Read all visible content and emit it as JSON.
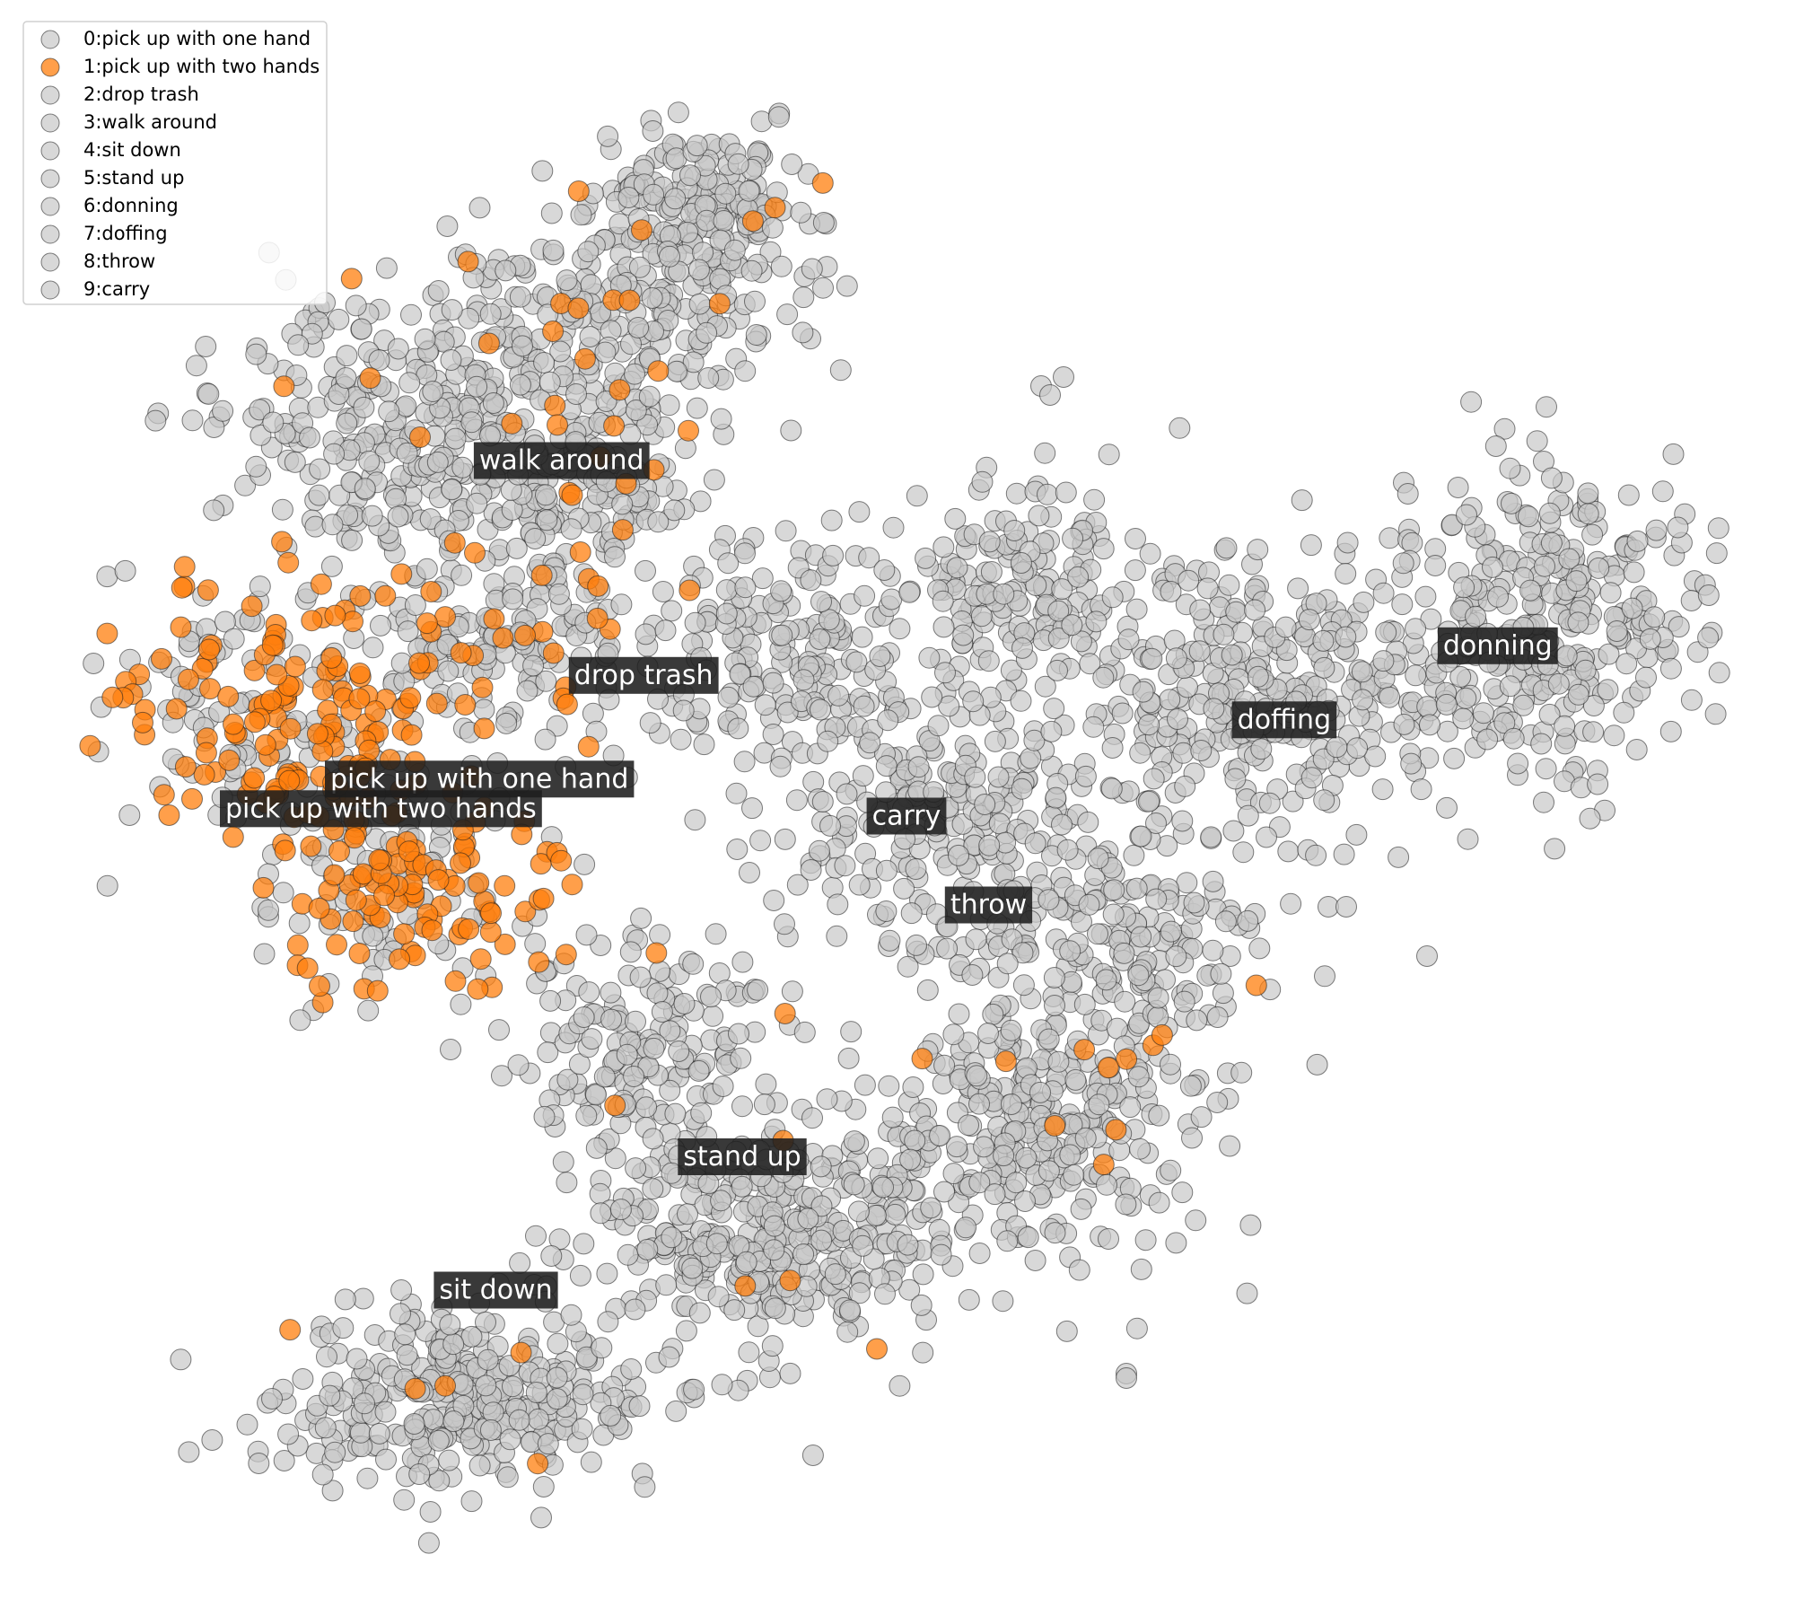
{
  "chart_data": {
    "type": "scatter",
    "title": "",
    "xlabel": "",
    "ylabel": "",
    "axes_visible": false,
    "grid": false,
    "legend_position": "top-left",
    "highlight_class": 1,
    "colors": {
      "highlight": "#ff7f0e",
      "other": "#c8c8c8",
      "edge": "#1a1a1a",
      "label_box": "#1e1e1e",
      "label_text": "#ffffff"
    },
    "legend": [
      {
        "id": 0,
        "label": "0:pick up with one hand"
      },
      {
        "id": 1,
        "label": "1:pick up with two hands"
      },
      {
        "id": 2,
        "label": "2:drop trash"
      },
      {
        "id": 3,
        "label": "3:walk around"
      },
      {
        "id": 4,
        "label": "4:sit down"
      },
      {
        "id": 5,
        "label": "5:stand up"
      },
      {
        "id": 6,
        "label": "6:donning"
      },
      {
        "id": 7,
        "label": "7:doffing"
      },
      {
        "id": 8,
        "label": "8:throw"
      },
      {
        "id": 9,
        "label": "9:carry"
      }
    ],
    "cluster_labels": [
      {
        "text": "walk around",
        "class": 3,
        "x": 0.29,
        "y": 0.74
      },
      {
        "text": "drop trash",
        "class": 2,
        "x": 0.34,
        "y": 0.595
      },
      {
        "text": "pick up with one hand",
        "class": 0,
        "x": 0.24,
        "y": 0.525
      },
      {
        "text": "pick up with two hands",
        "class": 1,
        "x": 0.18,
        "y": 0.505
      },
      {
        "text": "carry",
        "class": 9,
        "x": 0.5,
        "y": 0.5
      },
      {
        "text": "throw",
        "class": 8,
        "x": 0.55,
        "y": 0.44
      },
      {
        "text": "doffing",
        "class": 7,
        "x": 0.73,
        "y": 0.565
      },
      {
        "text": "donning",
        "class": 6,
        "x": 0.86,
        "y": 0.615
      },
      {
        "text": "stand up",
        "class": 5,
        "x": 0.4,
        "y": 0.27
      },
      {
        "text": "sit down",
        "class": 4,
        "x": 0.25,
        "y": 0.18
      }
    ]
  }
}
